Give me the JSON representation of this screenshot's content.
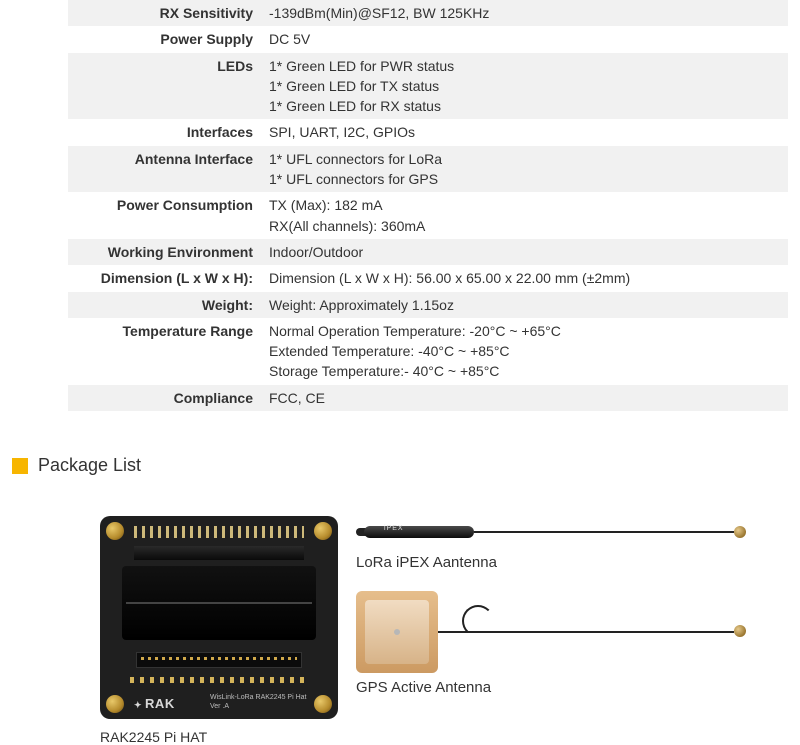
{
  "specs": [
    {
      "label": "RX Sensitivity",
      "value": "-139dBm(Min)@SF12, BW 125KHz",
      "alt": true
    },
    {
      "label": "Power Supply",
      "value": "DC 5V",
      "alt": false
    },
    {
      "label": "LEDs",
      "value": "1* Green LED for PWR status\n1* Green LED for TX status\n1* Green LED for RX status",
      "alt": true
    },
    {
      "label": "Interfaces",
      "value": "SPI, UART, I2C, GPIOs",
      "alt": false
    },
    {
      "label": "Antenna Interface",
      "value": "1* UFL connectors for LoRa\n1* UFL connectors for GPS",
      "alt": true
    },
    {
      "label": "Power Consumption",
      "value": "TX (Max): 182 mA\nRX(All channels): 360mA",
      "alt": false
    },
    {
      "label": "Working Environment",
      "value": "Indoor/Outdoor",
      "alt": true
    },
    {
      "label": "Dimension (L x W x H):",
      "value": "Dimension (L x W x H): 56.00 x 65.00 x 22.00 mm (±2mm)",
      "alt": false
    },
    {
      "label": "Weight:",
      "value": "Weight: Approximately 1.15oz",
      "alt": true
    },
    {
      "label": "Temperature Range",
      "value": "Normal Operation Temperature: -20°C ~ +65°C\nExtended Temperature: -40°C ~ +85°C\nStorage Temperature:- 40°C ~ +85°C",
      "alt": false
    },
    {
      "label": "Compliance",
      "value": "FCC, CE",
      "alt": true
    }
  ],
  "section": {
    "title": "Package List"
  },
  "board": {
    "logo_line1": "RAK",
    "logo_prefix": "✦ ",
    "sub1": "WisLink-LoRa RAK2245 Pi Hat",
    "sub2": "Ver .A",
    "caption": "RAK2245 Pi HAT"
  },
  "lora": {
    "label": "LoRa iPEX Aantenna"
  },
  "gps": {
    "label": "GPS Active Antenna"
  },
  "colors": {
    "accent": "#f7b500",
    "row_alt": "#f1f1f1",
    "text": "#333333"
  }
}
